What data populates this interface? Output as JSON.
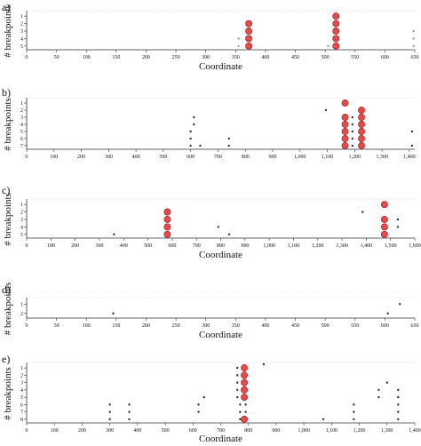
{
  "colors": {
    "axis": "#333333",
    "grid": "#cccccc",
    "highlight_fill": "#e84a4a",
    "highlight_stroke": "#a61c1c",
    "small_point": "#333333",
    "gray_point": "#9a9a9a"
  },
  "chart_data": [
    {
      "type": "scatter",
      "panel_label": "a)",
      "xlabel": "Coordinate",
      "ylabel": "# breakpoints",
      "xlim": [
        0,
        650
      ],
      "xticks": [
        "0",
        "50",
        "100",
        "150",
        "200",
        "250",
        "300",
        "350",
        "400",
        "450",
        "500",
        "550",
        "600",
        "650"
      ],
      "xtick_values": [
        0,
        50,
        100,
        150,
        200,
        250,
        300,
        350,
        400,
        450,
        500,
        550,
        600,
        650
      ],
      "yticks": [
        "1",
        "2",
        "3",
        "4",
        "5"
      ],
      "yrows": 5,
      "grid": false,
      "series": [
        {
          "style": "highlight",
          "points": [
            [
              372,
              2
            ],
            [
              372,
              3
            ],
            [
              372,
              4
            ],
            [
              372,
              5
            ],
            [
              518,
              1
            ],
            [
              518,
              2
            ],
            [
              518,
              3
            ],
            [
              518,
              4
            ],
            [
              518,
              5
            ]
          ]
        },
        {
          "style": "gray",
          "points": [
            [
              355,
              4
            ],
            [
              355,
              5
            ],
            [
              505,
              5
            ],
            [
              648,
              3
            ],
            [
              648,
              4
            ],
            [
              648,
              5
            ]
          ]
        }
      ]
    },
    {
      "type": "scatter",
      "panel_label": "b)",
      "xlabel": "",
      "ylabel": "# breakpoints",
      "xlim": [
        0,
        1420
      ],
      "xticks": [
        "0",
        "100",
        "200",
        "300",
        "400",
        "500",
        "600",
        "700",
        "800",
        "900",
        "1,000",
        "1,100",
        "1,200",
        "1,300",
        "1,400"
      ],
      "xtick_values": [
        0,
        100,
        200,
        300,
        400,
        500,
        600,
        700,
        800,
        900,
        1000,
        1100,
        1200,
        1300,
        1400
      ],
      "yticks": [
        "1",
        "2",
        "3",
        "4",
        "5",
        "6",
        "7"
      ],
      "yrows": 7,
      "grid": false,
      "series": [
        {
          "style": "highlight",
          "points": [
            [
              1165,
              1
            ],
            [
              1165,
              3
            ],
            [
              1165,
              4
            ],
            [
              1165,
              5
            ],
            [
              1165,
              6
            ],
            [
              1165,
              7
            ],
            [
              1225,
              2
            ],
            [
              1225,
              3
            ],
            [
              1225,
              4
            ],
            [
              1225,
              5
            ],
            [
              1225,
              6
            ],
            [
              1225,
              7
            ]
          ]
        },
        {
          "style": "small",
          "points": [
            [
              1095,
              2
            ],
            [
              1192,
              3
            ],
            [
              1192,
              4
            ],
            [
              1192,
              5
            ],
            [
              1192,
              6
            ],
            [
              1192,
              7
            ],
            [
              612,
              3
            ],
            [
              612,
              4
            ],
            [
              600,
              5
            ],
            [
              600,
              6
            ],
            [
              600,
              7
            ],
            [
              635,
              7
            ],
            [
              740,
              6
            ],
            [
              740,
              7
            ],
            [
              1410,
              5
            ],
            [
              1410,
              7
            ]
          ]
        }
      ]
    },
    {
      "type": "scatter",
      "panel_label": "c)",
      "xlabel": "Coordinate",
      "ylabel": "# breakpoints",
      "xlim": [
        0,
        1600
      ],
      "xticks": [
        "0",
        "100",
        "200",
        "300",
        "400",
        "500",
        "600",
        "700",
        "800",
        "900",
        "1,000",
        "1,100",
        "1,200",
        "1,300",
        "1,400",
        "1,500",
        "1,600"
      ],
      "xtick_values": [
        0,
        100,
        200,
        300,
        400,
        500,
        600,
        700,
        800,
        900,
        1000,
        1100,
        1200,
        1300,
        1400,
        1500,
        1600
      ],
      "yticks": [
        "1",
        "2",
        "3",
        "4",
        "5"
      ],
      "yrows": 5,
      "grid": false,
      "series": [
        {
          "style": "highlight",
          "points": [
            [
              580,
              2
            ],
            [
              580,
              3
            ],
            [
              580,
              4
            ],
            [
              580,
              5
            ],
            [
              1475,
              1
            ],
            [
              1475,
              3
            ],
            [
              1475,
              4
            ],
            [
              1475,
              5
            ]
          ]
        },
        {
          "style": "small",
          "points": [
            [
              360,
              5
            ],
            [
              790,
              4
            ],
            [
              835,
              5
            ],
            [
              1385,
              2
            ],
            [
              1530,
              3
            ],
            [
              1530,
              4
            ]
          ]
        }
      ]
    },
    {
      "type": "scatter",
      "panel_label": "d)",
      "xlabel": "Coordinate",
      "ylabel": "# breakpoints",
      "xlim": [
        0,
        650
      ],
      "xticks": [
        "0",
        "50",
        "100",
        "150",
        "200",
        "250",
        "300",
        "350",
        "400",
        "450",
        "500",
        "550",
        "600",
        "650"
      ],
      "xtick_values": [
        0,
        50,
        100,
        150,
        200,
        250,
        300,
        350,
        400,
        450,
        500,
        550,
        600,
        650
      ],
      "yticks": [
        "1",
        "2"
      ],
      "yrows": 2,
      "grid": false,
      "series": [
        {
          "style": "small",
          "points": [
            [
              145,
              2
            ],
            [
              605,
              2
            ],
            [
              625,
              1
            ]
          ]
        }
      ]
    },
    {
      "type": "scatter",
      "panel_label": "e)",
      "xlabel": "Coordinate",
      "ylabel": "# breakpoints",
      "xlim": [
        0,
        1400
      ],
      "xticks": [
        "0",
        "100",
        "200",
        "300",
        "400",
        "500",
        "600",
        "700",
        "800",
        "900",
        "1,000",
        "1,100",
        "1,200",
        "1,300",
        "1,400"
      ],
      "xtick_values": [
        0,
        100,
        200,
        300,
        400,
        500,
        600,
        700,
        800,
        900,
        1000,
        1100,
        1200,
        1300,
        1400
      ],
      "yticks": [
        "1",
        "2",
        "3",
        "4",
        "5",
        "6",
        "7",
        "8"
      ],
      "yrows": 8,
      "grid": false,
      "series": [
        {
          "style": "highlight",
          "points": [
            [
              785,
              1
            ],
            [
              785,
              2
            ],
            [
              785,
              3
            ],
            [
              785,
              4
            ],
            [
              785,
              5
            ],
            [
              785,
              8
            ]
          ]
        },
        {
          "style": "small",
          "points": [
            [
              855,
              0.5
            ],
            [
              760,
              1
            ],
            [
              760,
              2
            ],
            [
              760,
              3
            ],
            [
              760,
              4
            ],
            [
              760,
              5
            ],
            [
              770,
              6
            ],
            [
              790,
              6
            ],
            [
              770,
              7
            ],
            [
              790,
              7
            ],
            [
              770,
              8
            ],
            [
              640,
              5
            ],
            [
              620,
              6
            ],
            [
              620,
              7
            ],
            [
              300,
              6
            ],
            [
              300,
              7
            ],
            [
              300,
              8
            ],
            [
              370,
              6
            ],
            [
              370,
              7
            ],
            [
              370,
              8
            ],
            [
              1300,
              3
            ],
            [
              1270,
              4
            ],
            [
              1270,
              5
            ],
            [
              1340,
              4
            ],
            [
              1340,
              5
            ],
            [
              1340,
              6
            ],
            [
              1340,
              7
            ],
            [
              1340,
              8
            ],
            [
              1180,
              6
            ],
            [
              1180,
              7
            ],
            [
              1180,
              8
            ],
            [
              1070,
              8
            ]
          ]
        }
      ]
    }
  ]
}
